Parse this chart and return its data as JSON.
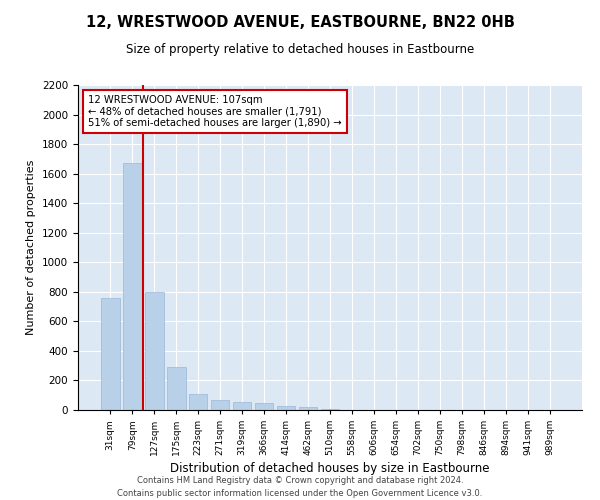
{
  "title": "12, WRESTWOOD AVENUE, EASTBOURNE, BN22 0HB",
  "subtitle": "Size of property relative to detached houses in Eastbourne",
  "xlabel": "Distribution of detached houses by size in Eastbourne",
  "ylabel": "Number of detached properties",
  "property_label": "12 WRESTWOOD AVENUE: 107sqm",
  "annotation_line1": "← 48% of detached houses are smaller (1,791)",
  "annotation_line2": "51% of semi-detached houses are larger (1,890) →",
  "bar_color": "#b8d0e8",
  "bar_edge_color": "#9ab8d8",
  "vline_color": "#cc0000",
  "background_color": "#dce9f5",
  "footer": "Contains HM Land Registry data © Crown copyright and database right 2024.\nContains public sector information licensed under the Open Government Licence v3.0.",
  "categories": [
    "31sqm",
    "79sqm",
    "127sqm",
    "175sqm",
    "223sqm",
    "271sqm",
    "319sqm",
    "366sqm",
    "414sqm",
    "462sqm",
    "510sqm",
    "558sqm",
    "606sqm",
    "654sqm",
    "702sqm",
    "750sqm",
    "798sqm",
    "846sqm",
    "894sqm",
    "941sqm",
    "989sqm"
  ],
  "values": [
    760,
    1670,
    800,
    290,
    110,
    65,
    55,
    50,
    30,
    20,
    5,
    0,
    0,
    0,
    0,
    0,
    0,
    0,
    0,
    0,
    0
  ],
  "ylim": [
    0,
    2200
  ],
  "yticks": [
    0,
    200,
    400,
    600,
    800,
    1000,
    1200,
    1400,
    1600,
    1800,
    2000,
    2200
  ],
  "vline_x_index": 1.5
}
